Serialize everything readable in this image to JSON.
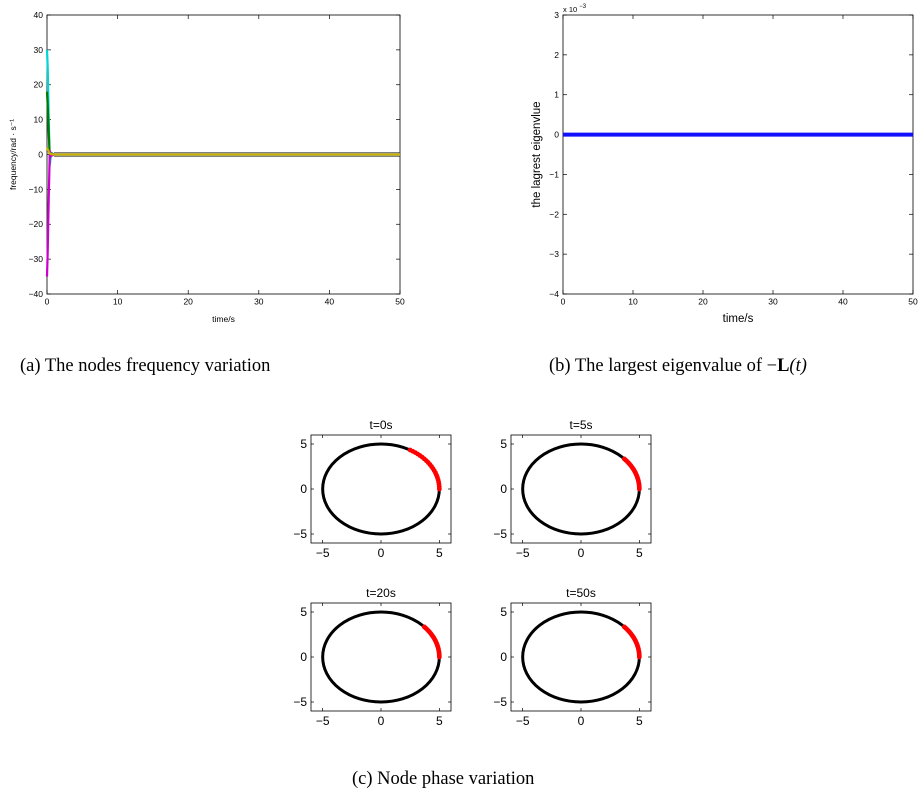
{
  "captions": {
    "a": "(a)  The nodes frequency variation",
    "b_prefix": "(b)  The largest eigenvalue of −",
    "b_L": "L",
    "b_t": "(t)",
    "c": "(c)  Node phase variation"
  },
  "chart_data": [
    {
      "id": "a",
      "type": "line",
      "xlabel": "time/s",
      "ylabel": "frequency/rad · s⁻¹",
      "xlim": [
        0,
        50
      ],
      "ylim": [
        -40,
        40
      ],
      "xticks": [
        "0",
        "10",
        "20",
        "30",
        "40",
        "50"
      ],
      "yticks": [
        "40",
        "30",
        "20",
        "10",
        "0",
        "−10",
        "−20",
        "−30",
        "−40"
      ],
      "grid": false,
      "series": [
        {
          "color": "#00d4d4",
          "x": [
            0,
            0.1,
            0.25,
            0.4,
            0.6,
            1.0,
            50
          ],
          "y": [
            30,
            25,
            10,
            -3,
            0.5,
            0,
            0
          ]
        },
        {
          "color": "#007a00",
          "x": [
            0,
            0.1,
            0.25,
            0.4,
            0.6,
            1.0,
            50
          ],
          "y": [
            18,
            14,
            6,
            -1,
            0.3,
            0,
            0
          ]
        },
        {
          "color": "#cc00cc",
          "x": [
            0,
            0.1,
            0.25,
            0.4,
            0.6,
            1.0,
            50
          ],
          "y": [
            -35,
            -28,
            -12,
            1,
            -0.4,
            0,
            0
          ]
        },
        {
          "color": "#c8b400",
          "x": [
            0,
            0.1,
            0.25,
            0.4,
            0.6,
            1.0,
            50
          ],
          "y": [
            2,
            1.5,
            0.8,
            0.3,
            0.1,
            0,
            0
          ]
        }
      ]
    },
    {
      "id": "b",
      "type": "line",
      "xlabel": "time/s",
      "ylabel": "the lagrest eigenvlue",
      "exponent_label": "x 10",
      "exponent_power": "−3",
      "xlim": [
        0,
        50
      ],
      "ylim": [
        -4,
        3
      ],
      "xticks": [
        "0",
        "10",
        "20",
        "30",
        "40",
        "50"
      ],
      "yticks": [
        "3",
        "2",
        "1",
        "0",
        "−1",
        "−2",
        "−3",
        "−4"
      ],
      "grid": false,
      "series": [
        {
          "color": "#1010ff",
          "x": [
            0,
            50
          ],
          "y": [
            0,
            0
          ]
        }
      ]
    },
    {
      "id": "c1",
      "type": "scatter",
      "title": "t=0s",
      "xlim": [
        -6,
        6
      ],
      "ylim": [
        -6,
        6
      ],
      "xticks": [
        "−5",
        "0",
        "5"
      ],
      "yticks": [
        "5",
        "0",
        "−5"
      ],
      "circle_radius": 5,
      "nodes_color": "#ff0000",
      "circle_color": "#000000",
      "nodes_angle_deg": [
        0,
        60
      ]
    },
    {
      "id": "c2",
      "type": "scatter",
      "title": "t=5s",
      "xlim": [
        -6,
        6
      ],
      "ylim": [
        -6,
        6
      ],
      "xticks": [
        "−5",
        "0",
        "5"
      ],
      "yticks": [
        "5",
        "0",
        "−5"
      ],
      "circle_radius": 5,
      "nodes_color": "#ff0000",
      "circle_color": "#000000",
      "nodes_angle_deg": [
        0,
        42
      ]
    },
    {
      "id": "c3",
      "type": "scatter",
      "title": "t=20s",
      "xlim": [
        -6,
        6
      ],
      "ylim": [
        -6,
        6
      ],
      "xticks": [
        "−5",
        "0",
        "5"
      ],
      "yticks": [
        "5",
        "0",
        "−5"
      ],
      "circle_radius": 5,
      "nodes_color": "#ff0000",
      "circle_color": "#000000",
      "nodes_angle_deg": [
        0,
        42
      ]
    },
    {
      "id": "c4",
      "type": "scatter",
      "title": "t=50s",
      "xlim": [
        -6,
        6
      ],
      "ylim": [
        -6,
        6
      ],
      "xticks": [
        "−5",
        "0",
        "5"
      ],
      "yticks": [
        "5",
        "0",
        "−5"
      ],
      "circle_radius": 5,
      "nodes_color": "#ff0000",
      "circle_color": "#000000",
      "nodes_angle_deg": [
        0,
        42
      ]
    }
  ]
}
